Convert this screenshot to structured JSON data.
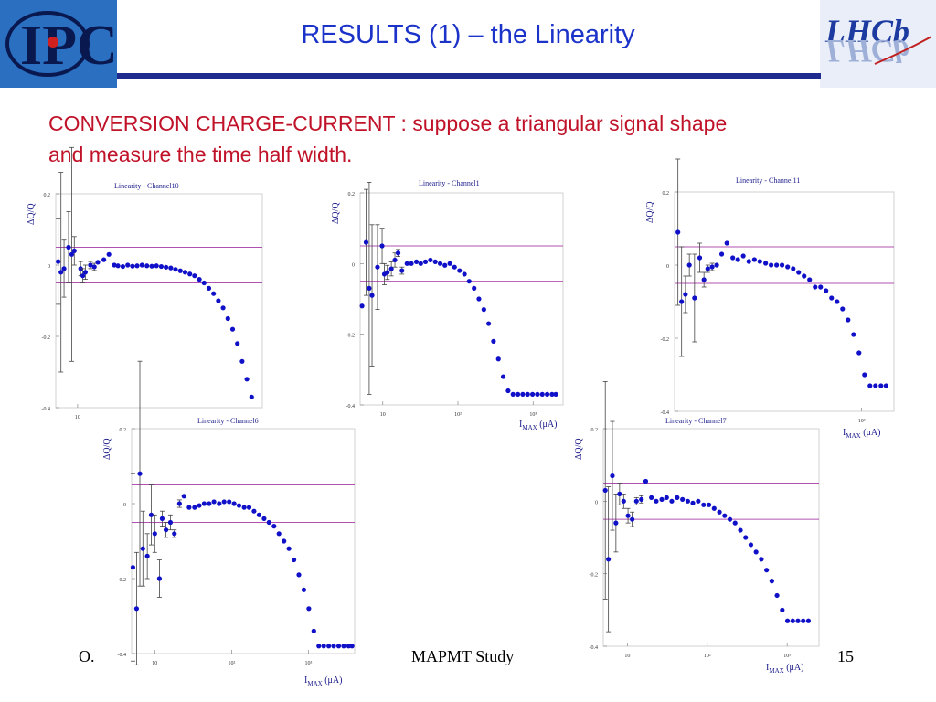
{
  "slide": {
    "title": "RESULTS (1) – the Linearity",
    "subtitle_line1": "CONVERSION CHARGE-CURRENT : suppose a triangular signal shape",
    "subtitle_line2": "and  measure the time half width.",
    "footer_left": "O.",
    "footer_center": "MAPMT Study",
    "page_number": "15",
    "logo_left_text": "IPC",
    "logo_right_text": "LHCb"
  },
  "colors": {
    "title": "#1c33c9",
    "subtitle": "#c0132a",
    "rule": "#1f2b8f",
    "points": "#1010c8",
    "band_lines": "#b050b0"
  },
  "chart_data": [
    {
      "type": "scatter",
      "title": "Linearity - Channel10",
      "xlabel": "",
      "ylabel": "ΔQ/Q",
      "xscale": "log",
      "xlim": [
        5,
        3500
      ],
      "ylim": [
        -0.4,
        0.2
      ],
      "x_ticks": [
        "10"
      ],
      "y_ticks": [
        "0.2",
        "0",
        "-0.2",
        "-0.4"
      ],
      "band": [
        -0.05,
        0.05
      ],
      "x": [
        5.4,
        5.9,
        6.5,
        7.5,
        8.3,
        9.0,
        11,
        11.8,
        12.8,
        15,
        17,
        19,
        23,
        27,
        32,
        36,
        42,
        49,
        57,
        66,
        77,
        90,
        105,
        122,
        142,
        165,
        192,
        223,
        260,
        302,
        351,
        408,
        475,
        552,
        642,
        746,
        868,
        1009,
        1173,
        1364,
        1586,
        1844,
        2144,
        2493
      ],
      "y": [
        0.01,
        -0.02,
        -0.01,
        0.05,
        0.03,
        0.04,
        -0.01,
        -0.03,
        -0.02,
        0.0,
        -0.005,
        0.008,
        0.015,
        0.03,
        0.0,
        -0.002,
        -0.004,
        0.0,
        -0.003,
        -0.002,
        0.0,
        -0.002,
        -0.003,
        -0.002,
        -0.004,
        -0.006,
        -0.008,
        -0.012,
        -0.016,
        -0.02,
        -0.025,
        -0.03,
        -0.04,
        -0.05,
        -0.065,
        -0.08,
        -0.1,
        -0.12,
        -0.15,
        -0.18,
        -0.22,
        -0.27,
        -0.32,
        -0.37
      ],
      "yerr": [
        0.12,
        0.28,
        0.08,
        0.1,
        0.3,
        0.04,
        0.02,
        0.02,
        0.02,
        0.01,
        0.01,
        0.0,
        0.0,
        0.0,
        0,
        0,
        0,
        0,
        0,
        0,
        0,
        0,
        0,
        0,
        0,
        0,
        0,
        0,
        0,
        0,
        0,
        0,
        0,
        0,
        0,
        0,
        0,
        0,
        0,
        0,
        0,
        0,
        0,
        0
      ]
    },
    {
      "type": "scatter",
      "title": "Linearity - Channel1",
      "xlabel": "I_MAX (μA)",
      "ylabel": "ΔQ/Q",
      "xscale": "log",
      "xlim": [
        5,
        2500
      ],
      "ylim": [
        -0.4,
        0.2
      ],
      "x_ticks": [
        "10",
        "10²",
        "10³"
      ],
      "y_ticks": [
        "0.2",
        "0",
        "-0.2",
        "-0.4"
      ],
      "band": [
        -0.05,
        0.05
      ],
      "x": [
        5.3,
        6.0,
        6.6,
        7.2,
        8.5,
        9.8,
        10.5,
        11.5,
        13,
        14.5,
        16,
        18,
        21,
        24,
        28,
        32,
        37,
        43,
        50,
        58,
        67,
        78,
        90,
        105,
        122,
        141,
        164,
        190,
        221,
        256,
        297,
        345,
        400,
        465,
        540,
        627,
        728,
        845,
        981,
        1139,
        1323,
        1536,
        1784,
        2000
      ],
      "y": [
        -0.12,
        0.06,
        -0.07,
        -0.09,
        -0.01,
        0.05,
        -0.03,
        -0.025,
        -0.015,
        0.01,
        0.03,
        -0.02,
        0.0,
        0.0,
        0.005,
        0.0,
        0.005,
        0.01,
        0.005,
        0.0,
        -0.005,
        0.0,
        -0.01,
        -0.02,
        -0.03,
        -0.05,
        -0.07,
        -0.1,
        -0.13,
        -0.17,
        -0.22,
        -0.27,
        -0.32,
        -0.36,
        -0.37,
        -0.37,
        -0.37,
        -0.37,
        -0.37,
        -0.37,
        -0.37,
        -0.37,
        -0.37,
        -0.37
      ],
      "yerr": [
        0,
        0.15,
        0.3,
        0.2,
        0.12,
        0.05,
        0.03,
        0.02,
        0.02,
        0.02,
        0.01,
        0.01,
        0,
        0,
        0,
        0,
        0,
        0,
        0,
        0,
        0,
        0,
        0,
        0,
        0,
        0,
        0,
        0,
        0,
        0,
        0,
        0,
        0,
        0,
        0,
        0,
        0,
        0,
        0,
        0,
        0,
        0,
        0,
        0
      ]
    },
    {
      "type": "scatter",
      "title": "Linearity - Channel11",
      "xlabel": "I_MAX (μA)",
      "ylabel": "ΔQ/Q",
      "xscale": "log",
      "xlim": [
        5,
        2500
      ],
      "ylim": [
        -0.4,
        0.2
      ],
      "x_ticks": [
        "10³"
      ],
      "y_ticks": [
        "0.2",
        "0",
        "-0.2",
        "-0.4"
      ],
      "band": [
        -0.05,
        0.05
      ],
      "x": [
        5.5,
        6.1,
        6.8,
        7.6,
        8.8,
        10.2,
        11.5,
        12.8,
        14.5,
        16.5,
        19,
        22,
        26,
        30,
        35,
        41,
        48,
        56,
        66,
        77,
        90,
        105,
        123,
        144,
        168,
        196,
        229,
        268,
        313,
        365,
        427,
        499,
        583,
        681,
        796,
        929,
        1086,
        1268,
        1482,
        1731,
        2000
      ],
      "y": [
        0.09,
        -0.1,
        -0.08,
        0.0,
        -0.09,
        0.02,
        -0.04,
        -0.01,
        -0.005,
        0.0,
        0.03,
        0.06,
        0.02,
        0.015,
        0.025,
        0.01,
        0.015,
        0.01,
        0.005,
        0.0,
        0.0,
        0.0,
        -0.005,
        -0.01,
        -0.02,
        -0.03,
        -0.04,
        -0.06,
        -0.06,
        -0.07,
        -0.09,
        -0.1,
        -0.12,
        -0.15,
        -0.19,
        -0.24,
        -0.3,
        -0.33,
        -0.33,
        -0.33,
        -0.33
      ],
      "yerr": [
        0.2,
        0.15,
        0.05,
        0.03,
        0.12,
        0.04,
        0.02,
        0.01,
        0.01,
        0,
        0,
        0,
        0,
        0,
        0,
        0,
        0,
        0,
        0,
        0,
        0,
        0,
        0,
        0,
        0,
        0,
        0,
        0,
        0,
        0,
        0,
        0,
        0,
        0,
        0,
        0,
        0,
        0,
        0,
        0,
        0
      ]
    },
    {
      "type": "scatter",
      "title": "Linearity - Channel6",
      "xlabel": "I_MAX (μA)",
      "ylabel": "ΔQ/Q",
      "xscale": "log",
      "xlim": [
        5,
        4000
      ],
      "ylim": [
        -0.4,
        0.2
      ],
      "x_ticks": [
        "10",
        "10²",
        "10³"
      ],
      "y_ticks": [
        "0.2",
        "0",
        "-0.2",
        "-0.4"
      ],
      "band": [
        -0.05,
        0.05
      ],
      "x": [
        5.2,
        5.8,
        6.4,
        7.0,
        8.0,
        9.0,
        10,
        11.5,
        12.5,
        14,
        16,
        18,
        21,
        24,
        28,
        33,
        38,
        44,
        51,
        59,
        69,
        80,
        93,
        108,
        125,
        146,
        169,
        196,
        228,
        265,
        307,
        357,
        414,
        481,
        558,
        648,
        752,
        873,
        1013,
        1176,
        1365,
        1585,
        1840,
        2135,
        2478,
        2877,
        3340,
        3700
      ],
      "y": [
        -0.17,
        -0.28,
        0.08,
        -0.12,
        -0.14,
        -0.03,
        -0.08,
        -0.2,
        -0.04,
        -0.07,
        -0.05,
        -0.08,
        0.0,
        0.02,
        -0.01,
        -0.01,
        -0.005,
        0.0,
        0.0,
        0.005,
        0.0,
        0.005,
        0.005,
        0.0,
        -0.005,
        -0.01,
        -0.01,
        -0.02,
        -0.03,
        -0.04,
        -0.05,
        -0.06,
        -0.08,
        -0.1,
        -0.12,
        -0.15,
        -0.19,
        -0.23,
        -0.28,
        -0.34,
        -0.38,
        -0.38,
        -0.38,
        -0.38,
        -0.38,
        -0.38,
        -0.38,
        -0.38
      ],
      "yerr": [
        0.25,
        0.15,
        0.3,
        0.1,
        0.06,
        0.08,
        0.05,
        0.05,
        0.02,
        0.02,
        0.02,
        0.01,
        0.01,
        0,
        0,
        0,
        0,
        0,
        0,
        0,
        0,
        0,
        0,
        0,
        0,
        0,
        0,
        0,
        0,
        0,
        0,
        0,
        0,
        0,
        0,
        0,
        0,
        0,
        0,
        0,
        0,
        0,
        0,
        0,
        0,
        0,
        0,
        0
      ]
    },
    {
      "type": "scatter",
      "title": "Linearity - Channel7",
      "xlabel": "I_MAX (μA)",
      "ylabel": "ΔQ/Q",
      "xscale": "log",
      "xlim": [
        5,
        2500
      ],
      "ylim": [
        -0.4,
        0.2
      ],
      "x_ticks": [
        "10",
        "10²",
        "10³"
      ],
      "y_ticks": [
        "0.2",
        "0",
        "-0.2",
        "-0.4"
      ],
      "band": [
        -0.05,
        0.05
      ],
      "x": [
        5.3,
        5.8,
        6.5,
        7.2,
        8.0,
        9.0,
        10.2,
        11.5,
        13,
        15,
        17,
        20,
        23,
        27,
        31,
        36,
        42,
        49,
        57,
        66,
        77,
        90,
        105,
        122,
        142,
        165,
        192,
        223,
        260,
        302,
        351,
        408,
        475,
        552,
        642,
        746,
        868,
        1009,
        1173,
        1364,
        1586,
        1844
      ],
      "y": [
        0.03,
        -0.16,
        0.07,
        -0.06,
        0.02,
        0.0,
        -0.04,
        -0.05,
        0.0,
        0.005,
        0.055,
        0.01,
        0.0,
        0.005,
        0.01,
        0.0,
        0.01,
        0.005,
        0.0,
        -0.005,
        0.0,
        -0.01,
        -0.01,
        -0.02,
        -0.03,
        -0.04,
        -0.05,
        -0.06,
        -0.08,
        -0.1,
        -0.12,
        -0.14,
        -0.16,
        -0.19,
        -0.22,
        -0.26,
        -0.3,
        -0.33,
        -0.33,
        -0.33,
        -0.33,
        -0.33
      ],
      "yerr": [
        0.3,
        0.2,
        0.15,
        0.08,
        0.03,
        0.02,
        0.02,
        0.02,
        0.01,
        0.01,
        0,
        0,
        0,
        0,
        0,
        0,
        0,
        0,
        0,
        0,
        0,
        0,
        0,
        0,
        0,
        0,
        0,
        0,
        0,
        0,
        0,
        0,
        0,
        0,
        0,
        0,
        0,
        0,
        0,
        0,
        0,
        0
      ]
    }
  ]
}
